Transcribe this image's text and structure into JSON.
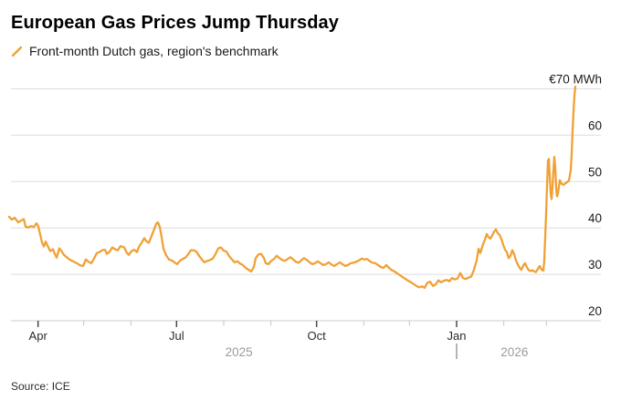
{
  "header": {
    "title": "European Gas Prices Jump Thursday"
  },
  "legend": {
    "label": "Front-month Dutch gas, region's benchmark"
  },
  "footer": {
    "source": "Source: ICE"
  },
  "chart_data": {
    "type": "line",
    "title": "European Gas Prices Jump Thursday",
    "subtitle": "Front-month Dutch gas, region's benchmark",
    "unit": "EUR/MWh",
    "ylim": [
      20,
      71
    ],
    "grid": "horizontal-only",
    "line_color": "#F0A135",
    "grid_color": "#DEDEDE",
    "axis_line_color": "#CDCDCD",
    "major_tick_color": "#4A4A4A",
    "minor_tick_color": "#C6C6C6",
    "y_label_color": "#1A1A1A",
    "month_label_color": "#2B2B2B",
    "year_label_color": "#9B9B9B",
    "y_ticks": [
      {
        "value": 70,
        "label": "€70 MWh"
      },
      {
        "value": 60,
        "label": "60"
      },
      {
        "value": 50,
        "label": "50"
      },
      {
        "value": 40,
        "label": "40"
      },
      {
        "value": 30,
        "label": "30"
      },
      {
        "value": 20,
        "label": "20"
      }
    ],
    "x_start_date": "2025-03-13",
    "x_total_days": 372,
    "x_ticks": [
      {
        "day": 19,
        "label": "Apr",
        "major": true
      },
      {
        "day": 49,
        "major": false
      },
      {
        "day": 80,
        "major": false
      },
      {
        "day": 110,
        "label": "Jul",
        "major": true
      },
      {
        "day": 141,
        "major": false
      },
      {
        "day": 172,
        "major": false
      },
      {
        "day": 202,
        "label": "Oct",
        "major": true
      },
      {
        "day": 233,
        "major": false
      },
      {
        "day": 263,
        "major": false
      },
      {
        "day": 294,
        "label": "Jan",
        "major": true
      },
      {
        "day": 325,
        "major": false
      },
      {
        "day": 353,
        "major": false
      }
    ],
    "year_labels": [
      {
        "label": "2025",
        "day": 151
      },
      {
        "label": "2026",
        "day": 332
      }
    ],
    "year_divider_day": 294,
    "series": [
      {
        "name": "Front-month Dutch gas",
        "points": [
          [
            0,
            42.4
          ],
          [
            1.8,
            41.8
          ],
          [
            3.6,
            42.2
          ],
          [
            6,
            41.2
          ],
          [
            7.8,
            41.6
          ],
          [
            9.6,
            41.9
          ],
          [
            10.8,
            40.3
          ],
          [
            12.6,
            40.1
          ],
          [
            14.4,
            40.4
          ],
          [
            16.2,
            40.2
          ],
          [
            18,
            41.0
          ],
          [
            19.2,
            40.3
          ],
          [
            20.4,
            38.6
          ],
          [
            21.6,
            36.9
          ],
          [
            22.8,
            36.0
          ],
          [
            24,
            37.1
          ],
          [
            25.2,
            36.2
          ],
          [
            27,
            35.0
          ],
          [
            28.8,
            35.4
          ],
          [
            30,
            34.4
          ],
          [
            31.2,
            33.6
          ],
          [
            33,
            35.6
          ],
          [
            34.2,
            35.1
          ],
          [
            36,
            34.2
          ],
          [
            37.8,
            33.7
          ],
          [
            39.6,
            33.2
          ],
          [
            41.4,
            32.9
          ],
          [
            43.2,
            32.6
          ],
          [
            45,
            32.3
          ],
          [
            46.8,
            31.9
          ],
          [
            48.6,
            31.8
          ],
          [
            50.4,
            33.2
          ],
          [
            52.2,
            32.7
          ],
          [
            54,
            32.4
          ],
          [
            55.8,
            33.4
          ],
          [
            57.6,
            34.6
          ],
          [
            59.4,
            34.8
          ],
          [
            61.2,
            35.2
          ],
          [
            63,
            35.3
          ],
          [
            64.2,
            34.4
          ],
          [
            66,
            34.9
          ],
          [
            67.8,
            35.8
          ],
          [
            69.6,
            35.4
          ],
          [
            71.4,
            35.2
          ],
          [
            73.2,
            36.1
          ],
          [
            75.6,
            35.8
          ],
          [
            77.4,
            34.6
          ],
          [
            78.6,
            34.2
          ],
          [
            80.4,
            35.0
          ],
          [
            82.2,
            35.3
          ],
          [
            84,
            34.8
          ],
          [
            85.2,
            35.9
          ],
          [
            87,
            36.8
          ],
          [
            88.8,
            37.8
          ],
          [
            90,
            37.2
          ],
          [
            91.8,
            36.8
          ],
          [
            93.6,
            38.3
          ],
          [
            95.4,
            39.8
          ],
          [
            96.6,
            40.9
          ],
          [
            97.8,
            41.2
          ],
          [
            99,
            40.2
          ],
          [
            100.2,
            38.0
          ],
          [
            101.4,
            35.5
          ],
          [
            103.2,
            34.1
          ],
          [
            105,
            33.2
          ],
          [
            106.8,
            33.0
          ],
          [
            108.6,
            32.6
          ],
          [
            110.4,
            32.2
          ],
          [
            112.2,
            32.9
          ],
          [
            114,
            33.3
          ],
          [
            115.8,
            33.6
          ],
          [
            117.6,
            34.3
          ],
          [
            119.4,
            35.2
          ],
          [
            121.2,
            35.2
          ],
          [
            123,
            34.9
          ],
          [
            124.8,
            34.0
          ],
          [
            126.6,
            33.2
          ],
          [
            128.4,
            32.6
          ],
          [
            130.2,
            32.9
          ],
          [
            132,
            33.1
          ],
          [
            133.8,
            33.4
          ],
          [
            135.6,
            34.4
          ],
          [
            137.4,
            35.6
          ],
          [
            139.2,
            35.8
          ],
          [
            141,
            35.1
          ],
          [
            142.8,
            34.9
          ],
          [
            144.6,
            33.9
          ],
          [
            146.4,
            33.2
          ],
          [
            148.2,
            32.6
          ],
          [
            150,
            32.8
          ],
          [
            151.8,
            32.3
          ],
          [
            153.6,
            32.0
          ],
          [
            155.4,
            31.4
          ],
          [
            157.2,
            31.0
          ],
          [
            159,
            30.6
          ],
          [
            160.8,
            31.6
          ],
          [
            162,
            33.5
          ],
          [
            163.8,
            34.3
          ],
          [
            165.6,
            34.4
          ],
          [
            167.4,
            33.5
          ],
          [
            168.6,
            32.4
          ],
          [
            170.4,
            32.2
          ],
          [
            172.2,
            32.9
          ],
          [
            174,
            33.3
          ],
          [
            175.8,
            34.0
          ],
          [
            177.6,
            33.5
          ],
          [
            179.4,
            33.1
          ],
          [
            181.2,
            32.9
          ],
          [
            183,
            33.3
          ],
          [
            184.8,
            33.7
          ],
          [
            186.6,
            33.2
          ],
          [
            188.4,
            32.7
          ],
          [
            190.2,
            32.5
          ],
          [
            192,
            33.0
          ],
          [
            193.8,
            33.5
          ],
          [
            195.6,
            33.1
          ],
          [
            197.4,
            32.6
          ],
          [
            199.2,
            32.2
          ],
          [
            201,
            32.4
          ],
          [
            202.8,
            32.8
          ],
          [
            204.6,
            32.4
          ],
          [
            206.4,
            32.0
          ],
          [
            208.2,
            32.2
          ],
          [
            210,
            32.6
          ],
          [
            211.8,
            32.1
          ],
          [
            213.6,
            31.8
          ],
          [
            215.4,
            32.2
          ],
          [
            217.2,
            32.6
          ],
          [
            219,
            32.2
          ],
          [
            220.8,
            31.8
          ],
          [
            222.6,
            32.0
          ],
          [
            224.4,
            32.4
          ],
          [
            226.2,
            32.5
          ],
          [
            228,
            32.7
          ],
          [
            229.8,
            33.0
          ],
          [
            231.6,
            33.4
          ],
          [
            233.4,
            33.2
          ],
          [
            235.2,
            33.3
          ],
          [
            237,
            32.8
          ],
          [
            238.8,
            32.5
          ],
          [
            240.6,
            32.4
          ],
          [
            242.4,
            32.0
          ],
          [
            244.2,
            31.6
          ],
          [
            246,
            31.4
          ],
          [
            247.8,
            32.0
          ],
          [
            249.6,
            31.4
          ],
          [
            251.4,
            30.9
          ],
          [
            253.2,
            30.6
          ],
          [
            255,
            30.2
          ],
          [
            256.8,
            29.8
          ],
          [
            258.6,
            29.4
          ],
          [
            260.4,
            29.0
          ],
          [
            262.2,
            28.6
          ],
          [
            264,
            28.3
          ],
          [
            265.8,
            27.9
          ],
          [
            267.6,
            27.5
          ],
          [
            269.4,
            27.2
          ],
          [
            271.2,
            27.4
          ],
          [
            273,
            27.1
          ],
          [
            274.8,
            28.2
          ],
          [
            276.6,
            28.4
          ],
          [
            278.4,
            27.5
          ],
          [
            280.2,
            27.8
          ],
          [
            282,
            28.7
          ],
          [
            283.8,
            28.3
          ],
          [
            285.6,
            28.6
          ],
          [
            287.4,
            28.8
          ],
          [
            289.2,
            28.5
          ],
          [
            291,
            29.2
          ],
          [
            292.8,
            28.9
          ],
          [
            294.6,
            29.1
          ],
          [
            296.4,
            30.3
          ],
          [
            298.2,
            29.2
          ],
          [
            300,
            29.0
          ],
          [
            301.8,
            29.3
          ],
          [
            303.6,
            29.5
          ],
          [
            305.4,
            31.0
          ],
          [
            307.2,
            33.0
          ],
          [
            308.4,
            35.5
          ],
          [
            309.6,
            34.6
          ],
          [
            311.4,
            36.5
          ],
          [
            312.6,
            37.5
          ],
          [
            313.8,
            38.7
          ],
          [
            315,
            38.0
          ],
          [
            316.2,
            37.7
          ],
          [
            317.4,
            38.4
          ],
          [
            318.6,
            39.2
          ],
          [
            319.8,
            39.7
          ],
          [
            321,
            38.9
          ],
          [
            322.2,
            38.5
          ],
          [
            323.4,
            37.6
          ],
          [
            324.6,
            36.4
          ],
          [
            325.8,
            35.3
          ],
          [
            327,
            34.8
          ],
          [
            328.2,
            33.5
          ],
          [
            329.4,
            34.0
          ],
          [
            330.6,
            35.2
          ],
          [
            331.8,
            34.3
          ],
          [
            333,
            33.0
          ],
          [
            334.2,
            32.1
          ],
          [
            335.4,
            31.4
          ],
          [
            336.6,
            31.0
          ],
          [
            337.8,
            31.9
          ],
          [
            339,
            32.4
          ],
          [
            340.2,
            31.5
          ],
          [
            341.4,
            30.9
          ],
          [
            342.6,
            30.7
          ],
          [
            343.8,
            30.9
          ],
          [
            345,
            30.6
          ],
          [
            346.2,
            30.5
          ],
          [
            347.4,
            31.2
          ],
          [
            348.6,
            31.8
          ],
          [
            349.8,
            31.0
          ],
          [
            351,
            30.8
          ],
          [
            351.6,
            33.0
          ],
          [
            352.2,
            38.0
          ],
          [
            352.8,
            43.0
          ],
          [
            353.4,
            49.0
          ],
          [
            354,
            54.5
          ],
          [
            354.6,
            54.9
          ],
          [
            355.2,
            51.0
          ],
          [
            355.8,
            47.5
          ],
          [
            356.4,
            46.2
          ],
          [
            357,
            49.0
          ],
          [
            357.6,
            52.5
          ],
          [
            358.2,
            55.3
          ],
          [
            358.8,
            53.0
          ],
          [
            359.4,
            48.5
          ],
          [
            360,
            46.8
          ],
          [
            360.6,
            47.5
          ],
          [
            361.2,
            48.8
          ],
          [
            361.8,
            50.3
          ],
          [
            362.4,
            49.9
          ],
          [
            363,
            49.5
          ],
          [
            364.2,
            49.3
          ],
          [
            365.4,
            49.6
          ],
          [
            366.6,
            49.9
          ],
          [
            367.8,
            50.2
          ],
          [
            369,
            52.5
          ],
          [
            369.6,
            56.0
          ],
          [
            370.2,
            61.0
          ],
          [
            370.8,
            65.0
          ],
          [
            371.4,
            68.5
          ],
          [
            372,
            70.5
          ]
        ]
      }
    ]
  }
}
